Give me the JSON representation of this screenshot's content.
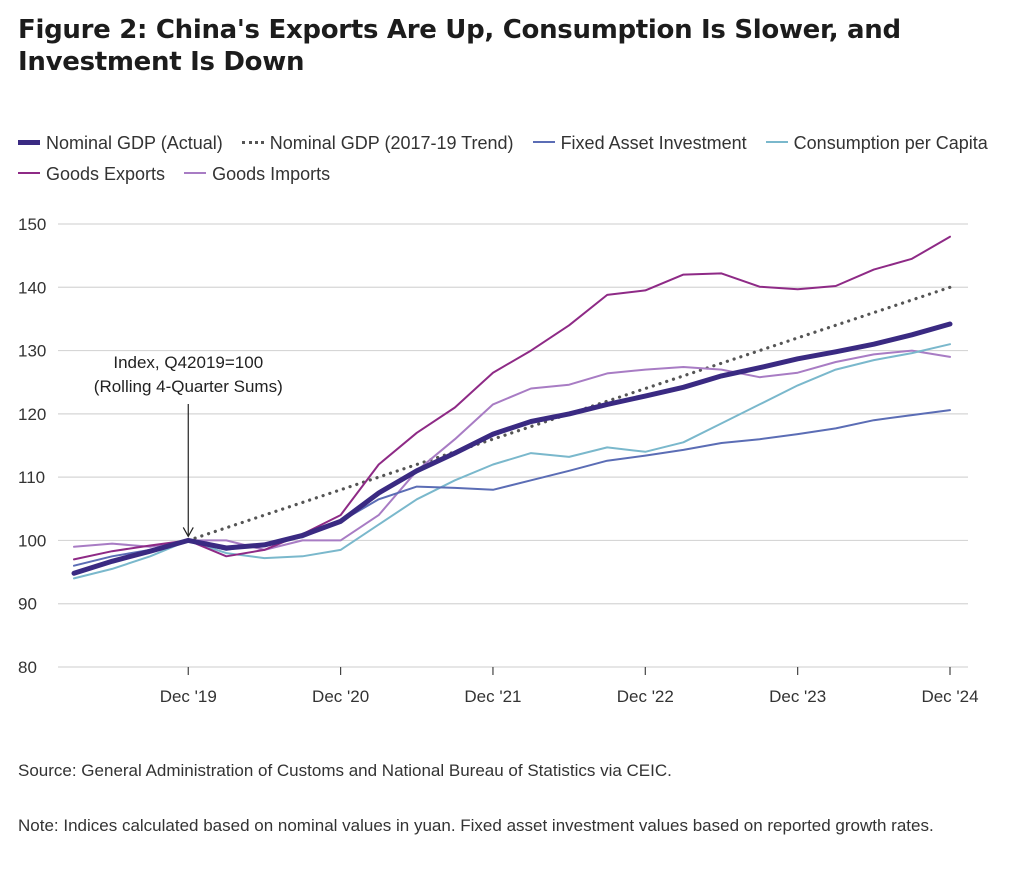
{
  "title": "Figure 2: China's Exports Are Up, Consumption Is Slower, and Investment Is Down",
  "legend": [
    {
      "label": "Nominal GDP (Actual)",
      "color": "#3a2a82",
      "style": "thick"
    },
    {
      "label": "Nominal GDP (2017-19 Trend)",
      "color": "#555555",
      "style": "dotted"
    },
    {
      "label": "Fixed Asset Investment",
      "color": "#5b6db5",
      "style": "thin"
    },
    {
      "label": "Consumption per Capita",
      "color": "#7ab8cc",
      "style": "thin"
    },
    {
      "label": "Goods Exports",
      "color": "#8e2a86",
      "style": "thin"
    },
    {
      "label": "Goods Imports",
      "color": "#a87cc4",
      "style": "thin"
    }
  ],
  "annotation": {
    "line1": "Index, Q42019=100",
    "line2": "(Rolling 4-Quarter Sums)",
    "x": 0
  },
  "source": "Source: General Administration of Customs and National Bureau of Statistics via CEIC.",
  "note": "Note: Indices calculated based on nominal values in yuan. Fixed asset investment values based on reported growth rates.",
  "chart_data": {
    "type": "line",
    "x_ticks": [
      {
        "x": 0,
        "label": "Dec '19"
      },
      {
        "x": 4,
        "label": "Dec '20"
      },
      {
        "x": 8,
        "label": "Dec '21"
      },
      {
        "x": 12,
        "label": "Dec '22"
      },
      {
        "x": 16,
        "label": "Dec '23"
      },
      {
        "x": 20,
        "label": "Dec '24"
      }
    ],
    "xlim": [
      -3,
      20
    ],
    "ylim": [
      80,
      150
    ],
    "y_ticks": [
      80,
      90,
      100,
      110,
      120,
      130,
      140,
      150
    ],
    "grid": true,
    "series": [
      {
        "name": "Nominal GDP (2017-19 Trend)",
        "color": "#555555",
        "style": "dotted",
        "x": [
          0,
          20
        ],
        "y": [
          100,
          140
        ]
      },
      {
        "name": "Goods Imports",
        "color": "#a87cc4",
        "style": "thin",
        "x": [
          -3,
          -2,
          -1,
          0,
          1,
          2,
          3,
          4,
          5,
          6,
          7,
          8,
          9,
          10,
          11,
          12,
          13,
          14,
          15,
          16,
          17,
          18,
          19,
          20
        ],
        "y": [
          99,
          99.5,
          99,
          100,
          100,
          98.5,
          100,
          100,
          104,
          111,
          116,
          121.5,
          124,
          124.6,
          126.4,
          127,
          127.4,
          127,
          125.8,
          126.5,
          128.2,
          129.4,
          130,
          129
        ]
      },
      {
        "name": "Consumption per Capita",
        "color": "#7ab8cc",
        "style": "thin",
        "x": [
          -3,
          -2,
          -1,
          0,
          1,
          2,
          3,
          4,
          5,
          6,
          7,
          8,
          9,
          10,
          11,
          12,
          13,
          14,
          15,
          16,
          17,
          18,
          19,
          20
        ],
        "y": [
          94,
          95.5,
          97.5,
          100,
          98,
          97.2,
          97.5,
          98.5,
          102.5,
          106.5,
          109.5,
          112,
          113.8,
          113.2,
          114.7,
          114,
          115.5,
          118.5,
          121.5,
          124.5,
          127,
          128.5,
          129.6,
          131
        ]
      },
      {
        "name": "Fixed Asset Investment",
        "color": "#5b6db5",
        "style": "thin",
        "x": [
          -3,
          -2,
          -1,
          0,
          1,
          2,
          3,
          4,
          5,
          6,
          7,
          8,
          9,
          10,
          11,
          12,
          13,
          14,
          15,
          16,
          17,
          18,
          19,
          20
        ],
        "y": [
          96,
          97.5,
          98.5,
          100,
          98.5,
          99.5,
          100.5,
          103,
          106.5,
          108.5,
          108.3,
          108,
          109.5,
          111,
          112.6,
          113.4,
          114.3,
          115.4,
          116,
          116.8,
          117.7,
          119,
          119.8,
          120.6
        ]
      },
      {
        "name": "Goods Exports",
        "color": "#8e2a86",
        "style": "thin",
        "x": [
          -3,
          -2,
          -1,
          0,
          1,
          2,
          3,
          4,
          5,
          6,
          7,
          8,
          9,
          10,
          11,
          12,
          13,
          14,
          15,
          16,
          17,
          18,
          19,
          20
        ],
        "y": [
          97,
          98.3,
          99.2,
          100,
          97.5,
          98.5,
          101,
          104,
          112,
          117,
          121,
          126.5,
          130,
          134,
          138.8,
          139.5,
          142,
          142.2,
          140.1,
          139.7,
          140.2,
          142.8,
          144.5,
          148
        ]
      },
      {
        "name": "Nominal GDP (Actual)",
        "color": "#3a2a82",
        "style": "thick",
        "x": [
          -3,
          -2,
          -1,
          0,
          1,
          2,
          3,
          4,
          5,
          6,
          7,
          8,
          9,
          10,
          11,
          12,
          13,
          14,
          15,
          16,
          17,
          18,
          19,
          20
        ],
        "y": [
          94.8,
          96.7,
          98.3,
          100,
          98.8,
          99.3,
          100.8,
          103,
          107.5,
          111,
          113.8,
          116.8,
          118.8,
          120,
          121.5,
          122.8,
          124.2,
          126,
          127.3,
          128.7,
          129.8,
          131,
          132.5,
          134.2
        ]
      }
    ]
  }
}
